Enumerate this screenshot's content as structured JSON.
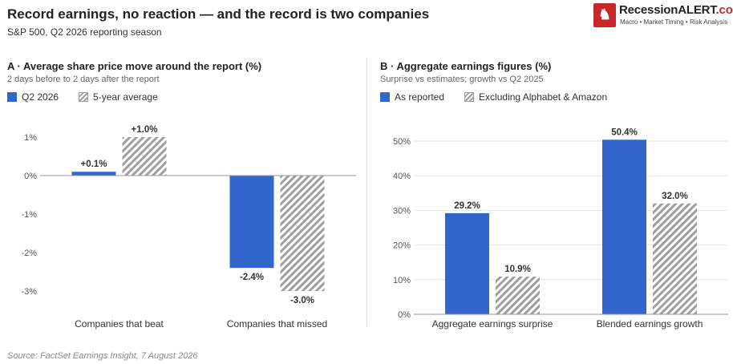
{
  "header": {
    "title": "Record earnings, no reaction — and the record is two companies",
    "subtitle": "S&P 500, Q2 2026 reporting season"
  },
  "logo": {
    "name_main": "Recession",
    "name_accent": "ALERT",
    "name_domain": ".com",
    "tagline": "Macro • Market Timing • Risk Analysis"
  },
  "colors": {
    "primary": "#3366cc",
    "hatch": "#9e9e9e",
    "axis": "#999999",
    "grid": "#e6e6e6"
  },
  "panels": [
    {
      "title": "A · Average share price move around the report (%)",
      "subtitle": "2 days before to 2 days after the report",
      "legend": [
        "Q2 2026",
        "5-year average"
      ]
    },
    {
      "title": "B · Aggregate earnings figures (%)",
      "subtitle": "Surprise vs estimates; growth vs Q2 2025",
      "legend": [
        "As reported",
        "Excluding Alphabet & Amazon"
      ]
    }
  ],
  "chart_data": [
    {
      "type": "bar",
      "categories": [
        "Companies that beat",
        "Companies that missed"
      ],
      "series": [
        {
          "name": "Q2 2026",
          "values": [
            0.1,
            -2.4
          ],
          "labels": [
            "+0.1%",
            "-2.4%"
          ],
          "style": "solid"
        },
        {
          "name": "5-year average",
          "values": [
            1.0,
            -3.0
          ],
          "labels": [
            "+1.0%",
            "-3.0%"
          ],
          "style": "hatch"
        }
      ],
      "ylim": [
        -3,
        1
      ],
      "yticks": [
        1,
        0,
        -1,
        -2,
        -3
      ],
      "ytick_labels": [
        "1%",
        "0%",
        "-1%",
        "-2%",
        "-3%"
      ],
      "grid": false
    },
    {
      "type": "bar",
      "categories": [
        "Aggregate earnings surprise",
        "Blended earnings growth"
      ],
      "series": [
        {
          "name": "As reported",
          "values": [
            29.2,
            50.4
          ],
          "labels": [
            "29.2%",
            "50.4%"
          ],
          "style": "solid"
        },
        {
          "name": "Excluding Alphabet & Amazon",
          "values": [
            10.9,
            32.0
          ],
          "labels": [
            "10.9%",
            "32.0%"
          ],
          "style": "hatch"
        }
      ],
      "ylim": [
        0,
        50
      ],
      "yticks": [
        50,
        40,
        30,
        20,
        10,
        0
      ],
      "ytick_labels": [
        "50%",
        "40%",
        "30%",
        "20%",
        "10%",
        "0%"
      ],
      "grid": true
    }
  ],
  "footer": {
    "source": "Source: FactSet Earnings Insight, 7 August 2026"
  }
}
